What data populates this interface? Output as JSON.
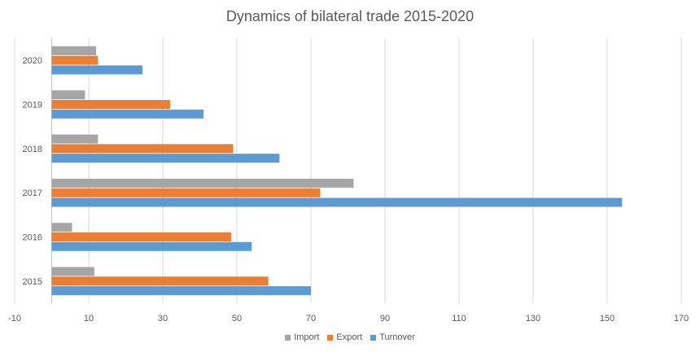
{
  "chart_data": {
    "type": "bar",
    "orientation": "horizontal",
    "title": "Dynamics of bilateral trade 2015-2020",
    "xlabel": "",
    "ylabel": "",
    "xlim": [
      -10,
      170
    ],
    "x_ticks": [
      -10,
      10,
      30,
      50,
      70,
      90,
      110,
      130,
      150,
      170
    ],
    "categories": [
      "2015",
      "2016",
      "2017",
      "2018",
      "2019",
      "2020"
    ],
    "series": [
      {
        "name": "Import",
        "color": "#a5a5a5",
        "values": [
          11.5,
          5.5,
          81.5,
          12.5,
          9,
          12
        ]
      },
      {
        "name": "Export",
        "color": "#ed7d31",
        "values": [
          58.5,
          48.5,
          72.5,
          49,
          32,
          12.5
        ]
      },
      {
        "name": "Turnover",
        "color": "#5b9bd5",
        "values": [
          70,
          54,
          154,
          61.5,
          41,
          24.5
        ]
      }
    ],
    "grid": "vertical",
    "legend_position": "bottom"
  }
}
